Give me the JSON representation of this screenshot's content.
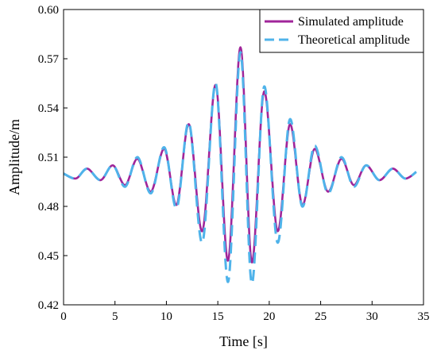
{
  "chart_data": {
    "type": "line",
    "xlabel": "Time [s]",
    "ylabel": "Amplitude/m",
    "xlim": [
      0,
      35
    ],
    "ylim": [
      0.42,
      0.6
    ],
    "xticks": [
      0,
      5,
      10,
      15,
      20,
      25,
      30,
      35
    ],
    "yticks": [
      0.42,
      0.45,
      0.48,
      0.51,
      0.54,
      0.57,
      0.6
    ],
    "x_tick_labels": [
      "0",
      "5",
      "10",
      "15",
      "20",
      "25",
      "30",
      "35"
    ],
    "y_tick_labels": [
      "0.42",
      "0.45",
      "0.48",
      "0.51",
      "0.54",
      "0.57",
      "0.60"
    ],
    "grid": false,
    "legend_position": "top-right",
    "series": [
      {
        "name": "Simulated amplitude",
        "color": "#a0259a",
        "style": "solid",
        "x": [
          0,
          1.2,
          2.3,
          3.6,
          4.8,
          6.0,
          7.2,
          8.5,
          9.8,
          11.0,
          12.2,
          13.5,
          14.8,
          16.0,
          17.2,
          18.3,
          19.5,
          20.8,
          22.0,
          23.2,
          24.4,
          25.7,
          27.0,
          28.2,
          29.4,
          30.7,
          32.0,
          33.2,
          34.3
        ],
        "y": [
          0.5,
          0.497,
          0.503,
          0.496,
          0.505,
          0.493,
          0.509,
          0.489,
          0.515,
          0.481,
          0.53,
          0.465,
          0.554,
          0.447,
          0.577,
          0.446,
          0.55,
          0.465,
          0.53,
          0.481,
          0.515,
          0.489,
          0.509,
          0.493,
          0.505,
          0.496,
          0.503,
          0.497,
          0.501
        ]
      },
      {
        "name": "Theoretical amplitude",
        "color": "#4fb3ea",
        "style": "dashed",
        "x": [
          0,
          1.2,
          2.3,
          3.6,
          4.8,
          6.0,
          7.2,
          8.5,
          9.8,
          11.0,
          12.2,
          13.5,
          14.8,
          16.0,
          17.2,
          18.3,
          19.5,
          20.8,
          22.0,
          23.2,
          24.4,
          25.7,
          27.0,
          28.2,
          29.4,
          30.7,
          32.0,
          33.2,
          34.3
        ],
        "y": [
          0.5,
          0.497,
          0.503,
          0.496,
          0.505,
          0.492,
          0.51,
          0.488,
          0.516,
          0.479,
          0.531,
          0.458,
          0.555,
          0.434,
          0.574,
          0.433,
          0.553,
          0.458,
          0.533,
          0.48,
          0.517,
          0.488,
          0.51,
          0.492,
          0.505,
          0.496,
          0.503,
          0.497,
          0.501
        ]
      }
    ]
  }
}
